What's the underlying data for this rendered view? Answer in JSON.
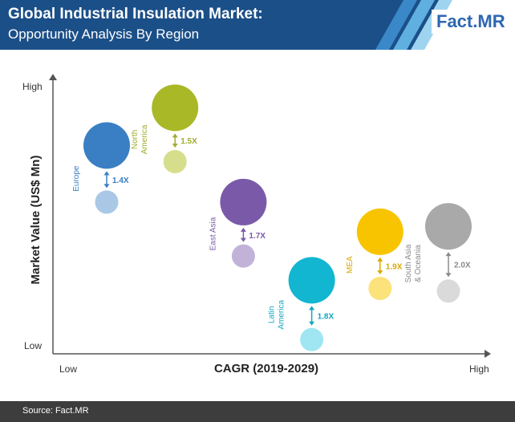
{
  "header": {
    "title": "Global Industrial Insulation Market:",
    "subtitle": "Opportunity Analysis By Region",
    "logo_a": "Fact",
    "logo_b": ".MR",
    "colors": {
      "bar": "#1b4f88",
      "stripe1": "#3a88c8",
      "stripe2": "#5fb0e0",
      "stripe3": "#9fd4f0"
    }
  },
  "chart_data": {
    "type": "bubble-comparison",
    "xlabel": "CAGR (2019-2029)",
    "ylabel": "Market Value (US$ Mn)",
    "x_low": "Low",
    "x_high": "High",
    "y_low": "Low",
    "y_high": "High",
    "regions": [
      {
        "name_lines": [
          "Europe"
        ],
        "multiplier": "1.4X",
        "color_big": "#3a7fc3",
        "color_small": "#a9c8e6",
        "arrow_color": "#3a7fc3",
        "x": 1,
        "y_big": 7.4,
        "y_small": 5.3,
        "r_big": 1.0,
        "r_small": 0.5
      },
      {
        "name_lines": [
          "North",
          "America"
        ],
        "multiplier": "1.5X",
        "color_big": "#a9b826",
        "color_small": "#d6de8c",
        "arrow_color": "#a0ab2e",
        "x": 2,
        "y_big": 8.8,
        "y_small": 6.8,
        "r_big": 1.0,
        "r_small": 0.5
      },
      {
        "name_lines": [
          "East Asia"
        ],
        "multiplier": "1.7X",
        "color_big": "#7a5aa8",
        "color_small": "#c2b2d8",
        "arrow_color": "#7a5aa8",
        "x": 3,
        "y_big": 5.3,
        "y_small": 3.3,
        "r_big": 1.0,
        "r_small": 0.5
      },
      {
        "name_lines": [
          "Latin",
          "America"
        ],
        "multiplier": "1.8X",
        "color_big": "#12b6d0",
        "color_small": "#9fe6f2",
        "arrow_color": "#12a6c0",
        "x": 4,
        "y_big": 2.4,
        "y_small": 0.2,
        "r_big": 1.0,
        "r_small": 0.5
      },
      {
        "name_lines": [
          "MEA"
        ],
        "multiplier": "1.9X",
        "color_big": "#f8c400",
        "color_small": "#fbe27a",
        "arrow_color": "#d7a800",
        "x": 5,
        "y_big": 4.2,
        "y_small": 2.1,
        "r_big": 1.0,
        "r_small": 0.5
      },
      {
        "name_lines": [
          "South Asia",
          "& Oceania"
        ],
        "multiplier": "2.0X",
        "color_big": "#a9a9a9",
        "color_small": "#dadada",
        "arrow_color": "#8a8a8a",
        "x": 6,
        "y_big": 4.4,
        "y_small": 2.0,
        "r_big": 1.0,
        "r_small": 0.5
      }
    ]
  },
  "footer": {
    "source": "Source: Fact.MR"
  }
}
